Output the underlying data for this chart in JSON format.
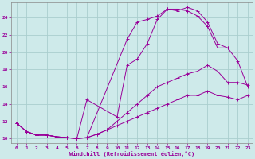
{
  "xlabel": "Windchill (Refroidissement éolien,°C)",
  "bg_color": "#ceeaea",
  "grid_color": "#aacece",
  "line_color": "#990099",
  "xlim": [
    -0.5,
    23.5
  ],
  "ylim": [
    9.5,
    25.8
  ],
  "xticks": [
    0,
    1,
    2,
    3,
    4,
    5,
    6,
    7,
    8,
    9,
    10,
    11,
    12,
    13,
    14,
    15,
    16,
    17,
    18,
    19,
    20,
    21,
    22,
    23
  ],
  "yticks": [
    10,
    12,
    14,
    16,
    18,
    20,
    22,
    24
  ],
  "lines": [
    {
      "x": [
        0,
        1,
        2,
        3,
        4,
        5,
        6,
        7,
        11,
        12,
        13,
        14,
        15,
        16,
        17,
        18,
        19,
        20,
        21,
        22,
        23
      ],
      "y": [
        11.8,
        10.8,
        10.4,
        10.4,
        10.2,
        10.1,
        10.0,
        10.1,
        21.5,
        23.5,
        23.8,
        24.2,
        25.0,
        25.0,
        24.8,
        24.2,
        23.0,
        20.5,
        20.5,
        19.0,
        16.0
      ]
    },
    {
      "x": [
        1,
        2,
        3,
        4,
        5,
        6,
        7,
        10,
        11,
        12,
        13,
        14,
        15,
        16,
        17,
        18,
        19,
        20,
        21
      ],
      "y": [
        10.8,
        10.4,
        10.4,
        10.2,
        10.1,
        10.0,
        14.5,
        12.5,
        18.5,
        19.2,
        21.0,
        23.8,
        25.0,
        24.8,
        25.2,
        24.8,
        23.5,
        21.0,
        20.5
      ]
    },
    {
      "x": [
        0,
        1,
        2,
        3,
        4,
        5,
        6,
        7,
        8,
        9,
        10,
        11,
        12,
        13,
        14,
        15,
        16,
        17,
        18,
        19,
        20,
        21,
        22,
        23
      ],
      "y": [
        11.8,
        10.8,
        10.4,
        10.4,
        10.2,
        10.1,
        10.0,
        10.1,
        10.5,
        11.0,
        12.0,
        13.0,
        14.0,
        15.0,
        16.0,
        16.5,
        17.0,
        17.5,
        17.8,
        18.5,
        17.8,
        16.5,
        16.5,
        16.2
      ]
    },
    {
      "x": [
        0,
        1,
        2,
        3,
        4,
        5,
        6,
        7,
        8,
        9,
        10,
        11,
        12,
        13,
        14,
        15,
        16,
        17,
        18,
        19,
        20,
        21,
        22,
        23
      ],
      "y": [
        11.8,
        10.8,
        10.4,
        10.4,
        10.2,
        10.1,
        10.0,
        10.1,
        10.5,
        11.0,
        11.5,
        12.0,
        12.5,
        13.0,
        13.5,
        14.0,
        14.5,
        15.0,
        15.0,
        15.5,
        15.0,
        14.8,
        14.5,
        15.0
      ]
    }
  ]
}
